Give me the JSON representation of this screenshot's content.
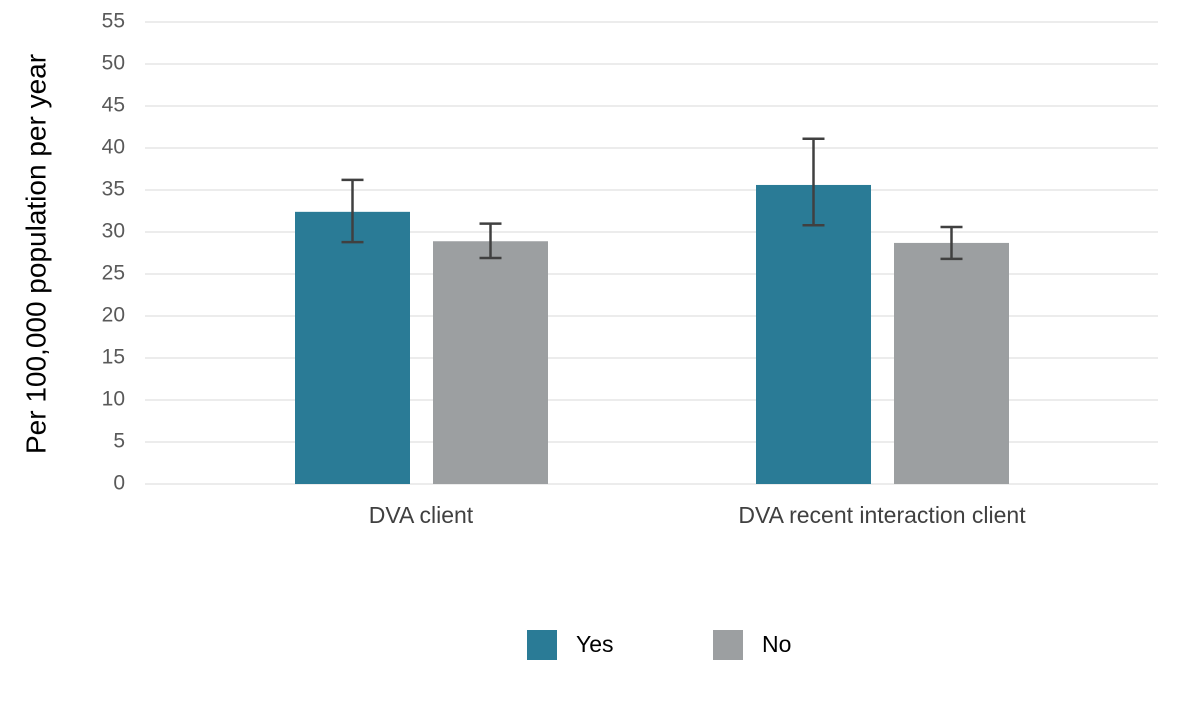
{
  "chart_data": {
    "type": "bar",
    "y_label": "Per 100,000 population per year",
    "categories": [
      "DVA client",
      "DVA recent interaction client"
    ],
    "series": [
      {
        "name": "Yes",
        "color": "#2a7b96",
        "values": [
          32.4,
          35.6
        ],
        "ci_lower": [
          28.8,
          30.8
        ],
        "ci_upper": [
          36.2,
          41.1
        ]
      },
      {
        "name": "No",
        "color": "#9c9fa1",
        "values": [
          28.9,
          28.7
        ],
        "ci_lower": [
          26.9,
          26.8
        ],
        "ci_upper": [
          31.0,
          30.6
        ]
      }
    ],
    "ylim": [
      0,
      55
    ],
    "yticks": [
      0,
      5,
      10,
      15,
      20,
      25,
      30,
      35,
      40,
      45,
      50,
      55
    ],
    "grid": true
  }
}
